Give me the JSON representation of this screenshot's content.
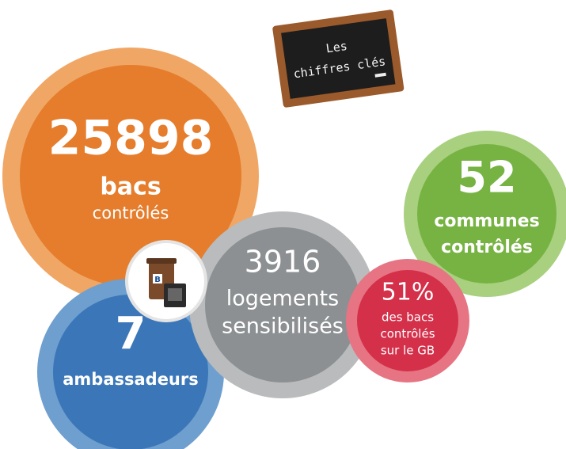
{
  "chalkboard": {
    "lines": [
      "Les",
      "chiffres clés"
    ]
  },
  "icon": {
    "label": "B"
  },
  "bubbles": [
    {
      "number": "25898",
      "lines": [
        "bacs",
        "contrôlés"
      ]
    },
    {
      "number": "7",
      "lines": [
        "ambassadeurs"
      ]
    },
    {
      "number": "3916",
      "lines": [
        "logements",
        "sensibilisés"
      ]
    },
    {
      "number": "52",
      "lines": [
        "communes",
        "contrôlés"
      ]
    },
    {
      "number": "51%",
      "lines": [
        "des bacs",
        "contrôlés",
        "sur le GB"
      ]
    }
  ]
}
